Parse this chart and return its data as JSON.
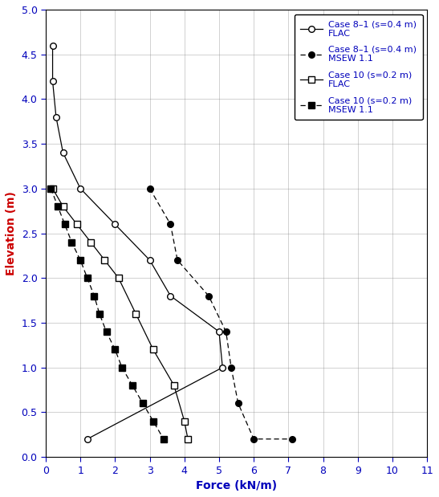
{
  "title": "",
  "xlabel": "Force (kN/m)",
  "ylabel": "Elevation (m)",
  "xlim": [
    0,
    11
  ],
  "ylim": [
    0,
    5
  ],
  "xticks": [
    0,
    1,
    2,
    3,
    4,
    5,
    6,
    7,
    8,
    9,
    10,
    11
  ],
  "yticks": [
    0,
    0.5,
    1.0,
    1.5,
    2.0,
    2.5,
    3.0,
    3.5,
    4.0,
    4.5,
    5.0
  ],
  "case8_flac_force": [
    0.2,
    0.2,
    0.3,
    0.5,
    1.0,
    2.0,
    3.0,
    3.6,
    5.0,
    5.1,
    1.2
  ],
  "case8_flac_elev": [
    4.6,
    4.2,
    3.8,
    3.4,
    3.0,
    2.6,
    2.2,
    1.8,
    1.4,
    1.0,
    0.2
  ],
  "case8_msew_force": [
    3.0,
    3.6,
    3.8,
    4.7,
    5.2,
    5.35,
    5.55,
    6.0,
    7.1
  ],
  "case8_msew_elev": [
    3.0,
    2.6,
    2.2,
    1.8,
    1.4,
    1.0,
    0.6,
    0.2,
    0.2
  ],
  "case10_flac_force": [
    0.2,
    0.5,
    0.9,
    1.3,
    1.7,
    2.1,
    2.6,
    3.1,
    3.7,
    4.0,
    4.1
  ],
  "case10_flac_elev": [
    3.0,
    2.8,
    2.6,
    2.4,
    2.2,
    2.0,
    1.6,
    1.2,
    0.8,
    0.4,
    0.2
  ],
  "case10_msew_force": [
    0.15,
    0.35,
    0.55,
    0.75,
    1.0,
    1.2,
    1.4,
    1.55,
    1.75,
    2.0,
    2.2,
    2.5,
    2.8,
    3.1,
    3.4
  ],
  "case10_msew_elev": [
    3.0,
    2.8,
    2.6,
    2.4,
    2.2,
    2.0,
    1.8,
    1.6,
    1.4,
    1.2,
    1.0,
    0.8,
    0.6,
    0.4,
    0.2
  ],
  "legend_labels": [
    "Case 8–1 (s=0.4 m)\nFLAC",
    "Case 8–1 (s=0.4 m)\nMSEW 1.1",
    "Case 10 (s=0.2 m)\nFLAC",
    "Case 10 (s=0.2 m)\nMSEW 1.1"
  ],
  "xlabel_color": "#0000bb",
  "ylabel_color": "#cc0000",
  "legend_text_color": "#0000bb",
  "tick_color": "#0000bb"
}
